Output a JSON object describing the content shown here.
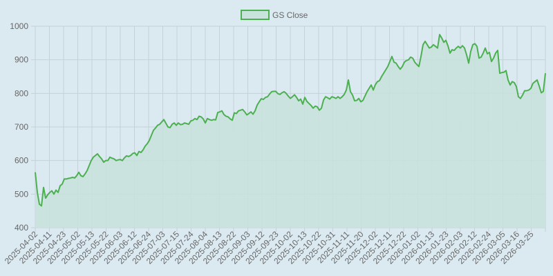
{
  "chart_data": {
    "type": "area",
    "title": "",
    "xlabel": "",
    "ylabel": "",
    "ylim": [
      400,
      1000
    ],
    "yticks": [
      400,
      500,
      600,
      700,
      800,
      900,
      1000
    ],
    "grid": true,
    "legend_position": "top-center",
    "colors": {
      "line": "#4caf50",
      "fill": "#c8e2dc",
      "grid": "#c5d1d8",
      "background": "#dbe9f1"
    },
    "x_tick_labels": [
      "2025-04-02",
      "2025-04-11",
      "2025-04-23",
      "2025-05-02",
      "2025-05-13",
      "2025-05-22",
      "2025-06-03",
      "2025-06-12",
      "2025-06-24",
      "2025-07-03",
      "2025-07-15",
      "2025-07-24",
      "2025-08-04",
      "2025-08-13",
      "2025-08-22",
      "2025-09-03",
      "2025-09-12",
      "2025-09-23",
      "2025-10-02",
      "2025-10-13",
      "2025-10-22",
      "2025-10-31",
      "2025-11-11",
      "2025-11-20",
      "2025-12-02",
      "2025-12-11",
      "2025-12-22",
      "2026-01-02",
      "2026-01-13",
      "2026-01-23",
      "2026-02-03",
      "2026-02-12",
      "2026-02-24",
      "2026-03-05",
      "2026-03-16",
      "2026-03-25"
    ],
    "series": [
      {
        "name": "GS Close",
        "values": [
          565,
          505,
          470,
          465,
          520,
          488,
          498,
          505,
          510,
          500,
          512,
          505,
          525,
          530,
          545,
          545,
          547,
          548,
          550,
          548,
          555,
          565,
          555,
          552,
          560,
          570,
          585,
          600,
          610,
          615,
          620,
          612,
          605,
          595,
          600,
          600,
          610,
          607,
          605,
          600,
          602,
          603,
          600,
          608,
          614,
          612,
          615,
          621,
          623,
          615,
          627,
          624,
          632,
          643,
          650,
          660,
          675,
          690,
          697,
          705,
          708,
          715,
          722,
          711,
          700,
          698,
          708,
          712,
          705,
          712,
          707,
          708,
          712,
          710,
          708,
          718,
          720,
          725,
          722,
          732,
          730,
          724,
          712,
          725,
          722,
          720,
          722,
          721,
          743,
          745,
          748,
          737,
          732,
          730,
          724,
          720,
          742,
          740,
          748,
          750,
          752,
          745,
          736,
          740,
          745,
          738,
          748,
          765,
          775,
          784,
          782,
          788,
          790,
          798,
          805,
          806,
          806,
          799,
          797,
          802,
          805,
          800,
          792,
          785,
          790,
          796,
          788,
          778,
          783,
          768,
          788,
          776,
          770,
          764,
          756,
          762,
          760,
          750,
          756,
          780,
          790,
          787,
          783,
          790,
          788,
          785,
          790,
          785,
          790,
          797,
          810,
          840,
          805,
          795,
          778,
          779,
          785,
          775,
          779,
          792,
          805,
          815,
          825,
          810,
          826,
          835,
          838,
          850,
          860,
          870,
          880,
          895,
          910,
          893,
          890,
          880,
          872,
          880,
          893,
          898,
          900,
          908,
          905,
          893,
          886,
          880,
          910,
          945,
          955,
          945,
          935,
          938,
          945,
          940,
          935,
          975,
          965,
          952,
          958,
          942,
          920,
          930,
          928,
          935,
          940,
          935,
          942,
          935,
          915,
          890,
          925,
          945,
          948,
          940,
          905,
          908,
          920,
          935,
          918,
          922,
          895,
          905,
          920,
          928,
          860,
          862,
          863,
          868,
          840,
          825,
          835,
          832,
          820,
          790,
          785,
          795,
          808,
          808,
          810,
          815,
          830,
          835,
          840,
          822,
          802,
          806,
          860
        ]
      }
    ]
  }
}
